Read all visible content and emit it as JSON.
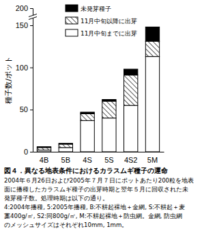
{
  "chart_data": {
    "type": "bar",
    "stacked": true,
    "title": "図４．異なる地表条件におけるカラスムギ種子の運命",
    "caption": [
      "2004年６月26日および2005年７月７日にポットあたり200粒を地表",
      "面に播種したカラスムギ種子の出芽時期と翌年５月に回収された未",
      "発芽種子数。処理時期は以下の通り。",
      "4:2004年播種, 5:2005年播種, B:不耕起裸地＋金網, S:不耕起＋麦",
      "藁400g/㎡, S2:同800g/㎡, M:不耕起裸地＋防虫網。金網, 防虫網",
      "のメッシュサイズはそれぞれ10mm, 1mm。"
    ],
    "y_label": "種子数/ポット",
    "categories": [
      "4B",
      "5B",
      "4S",
      "5S",
      "4S2",
      "5M"
    ],
    "series": [
      {
        "name": "11月中旬までに出芽",
        "color": "#ffffff",
        "values": [
          2,
          5,
          37,
          40,
          55,
          113
        ]
      },
      {
        "name": "11月中旬以降に出芽",
        "color": "#555555",
        "values": [
          3,
          4,
          8,
          20,
          36,
          18
        ]
      },
      {
        "name": "未発芽種子",
        "color": "#000000",
        "values": [
          1,
          1,
          2,
          2,
          7,
          17
        ]
      }
    ],
    "ylim": [
      0,
      200
    ],
    "yticks": [
      0,
      50,
      100,
      150,
      200
    ],
    "legend": "top"
  }
}
